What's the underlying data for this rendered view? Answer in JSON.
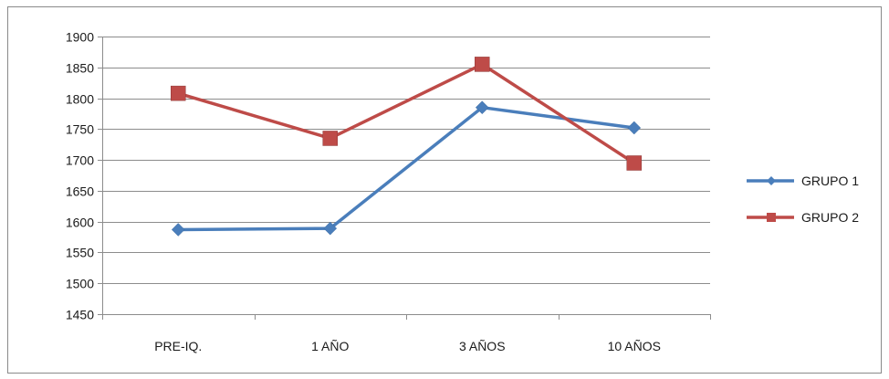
{
  "chart_data": {
    "type": "line",
    "title": "",
    "xlabel": "",
    "ylabel": "",
    "categories": [
      "PRE-IQ.",
      "1 AÑO",
      "3 AÑOS",
      "10 AÑOS"
    ],
    "ylim": [
      1450,
      1900
    ],
    "yticks": [
      1450,
      1500,
      1550,
      1600,
      1650,
      1700,
      1750,
      1800,
      1850,
      1900
    ],
    "grid": true,
    "legend": "right",
    "series": [
      {
        "name": "GRUPO 1",
        "values": [
          1587,
          1589,
          1785,
          1752
        ],
        "color": "#4a7ebb",
        "marker": "diamond"
      },
      {
        "name": "GRUPO 2",
        "values": [
          1808,
          1735,
          1855,
          1695
        ],
        "color": "#be4b48",
        "marker": "square"
      }
    ]
  }
}
